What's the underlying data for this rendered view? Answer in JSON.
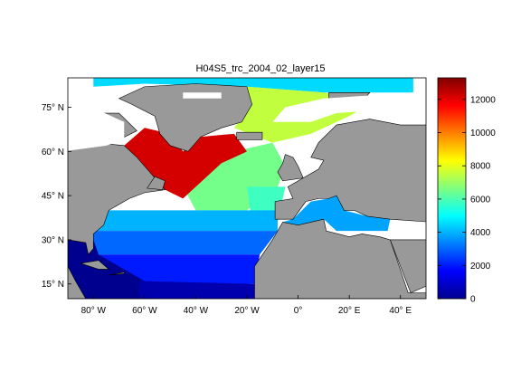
{
  "title": "H04S5_trc_2004_02_layer15",
  "map": {
    "lon_range": [
      -90,
      50
    ],
    "lat_range": [
      10,
      85
    ],
    "land_color": "#999999",
    "nodata_color": "#ffffff",
    "lat_ticks": [
      {
        "value": 15,
        "label": "15° N"
      },
      {
        "value": 30,
        "label": "30° N"
      },
      {
        "value": 45,
        "label": "45° N"
      },
      {
        "value": 60,
        "label": "60° N"
      },
      {
        "value": 75,
        "label": "75° N"
      }
    ],
    "lon_ticks": [
      {
        "value": -80,
        "label": "80° W"
      },
      {
        "value": -60,
        "label": "60° W"
      },
      {
        "value": -40,
        "label": "40° W"
      },
      {
        "value": -20,
        "label": "20° W"
      },
      {
        "value": 0,
        "label": "0°"
      },
      {
        "value": 20,
        "label": "20° E"
      },
      {
        "value": 40,
        "label": "40° E"
      }
    ],
    "field_regions": [
      {
        "name": "arctic-ocean",
        "value": 4500
      },
      {
        "name": "greenland-sea-nordic",
        "value": 7500
      },
      {
        "name": "labrador-irminger-sea",
        "value": 12200
      },
      {
        "name": "central-north-atlantic",
        "value": 6500
      },
      {
        "name": "iberian-margin",
        "value": 5800
      },
      {
        "name": "subtropical-north",
        "value": 4000
      },
      {
        "name": "subtropical-central",
        "value": 3000
      },
      {
        "name": "subtropical-south",
        "value": 2000
      },
      {
        "name": "gulf-of-mexico-caribbean",
        "value": 200
      },
      {
        "name": "tropical-south-edge",
        "value": 600
      },
      {
        "name": "mediterranean",
        "value": 3800
      }
    ]
  },
  "colorbar": {
    "min": 0,
    "max": 13300,
    "colormap": "jet",
    "ticks": [
      {
        "value": 0,
        "label": "0"
      },
      {
        "value": 2000,
        "label": "2000"
      },
      {
        "value": 4000,
        "label": "4000"
      },
      {
        "value": 6000,
        "label": "6000"
      },
      {
        "value": 8000,
        "label": "8000"
      },
      {
        "value": 10000,
        "label": "10000"
      },
      {
        "value": 12000,
        "label": "12000"
      }
    ]
  }
}
